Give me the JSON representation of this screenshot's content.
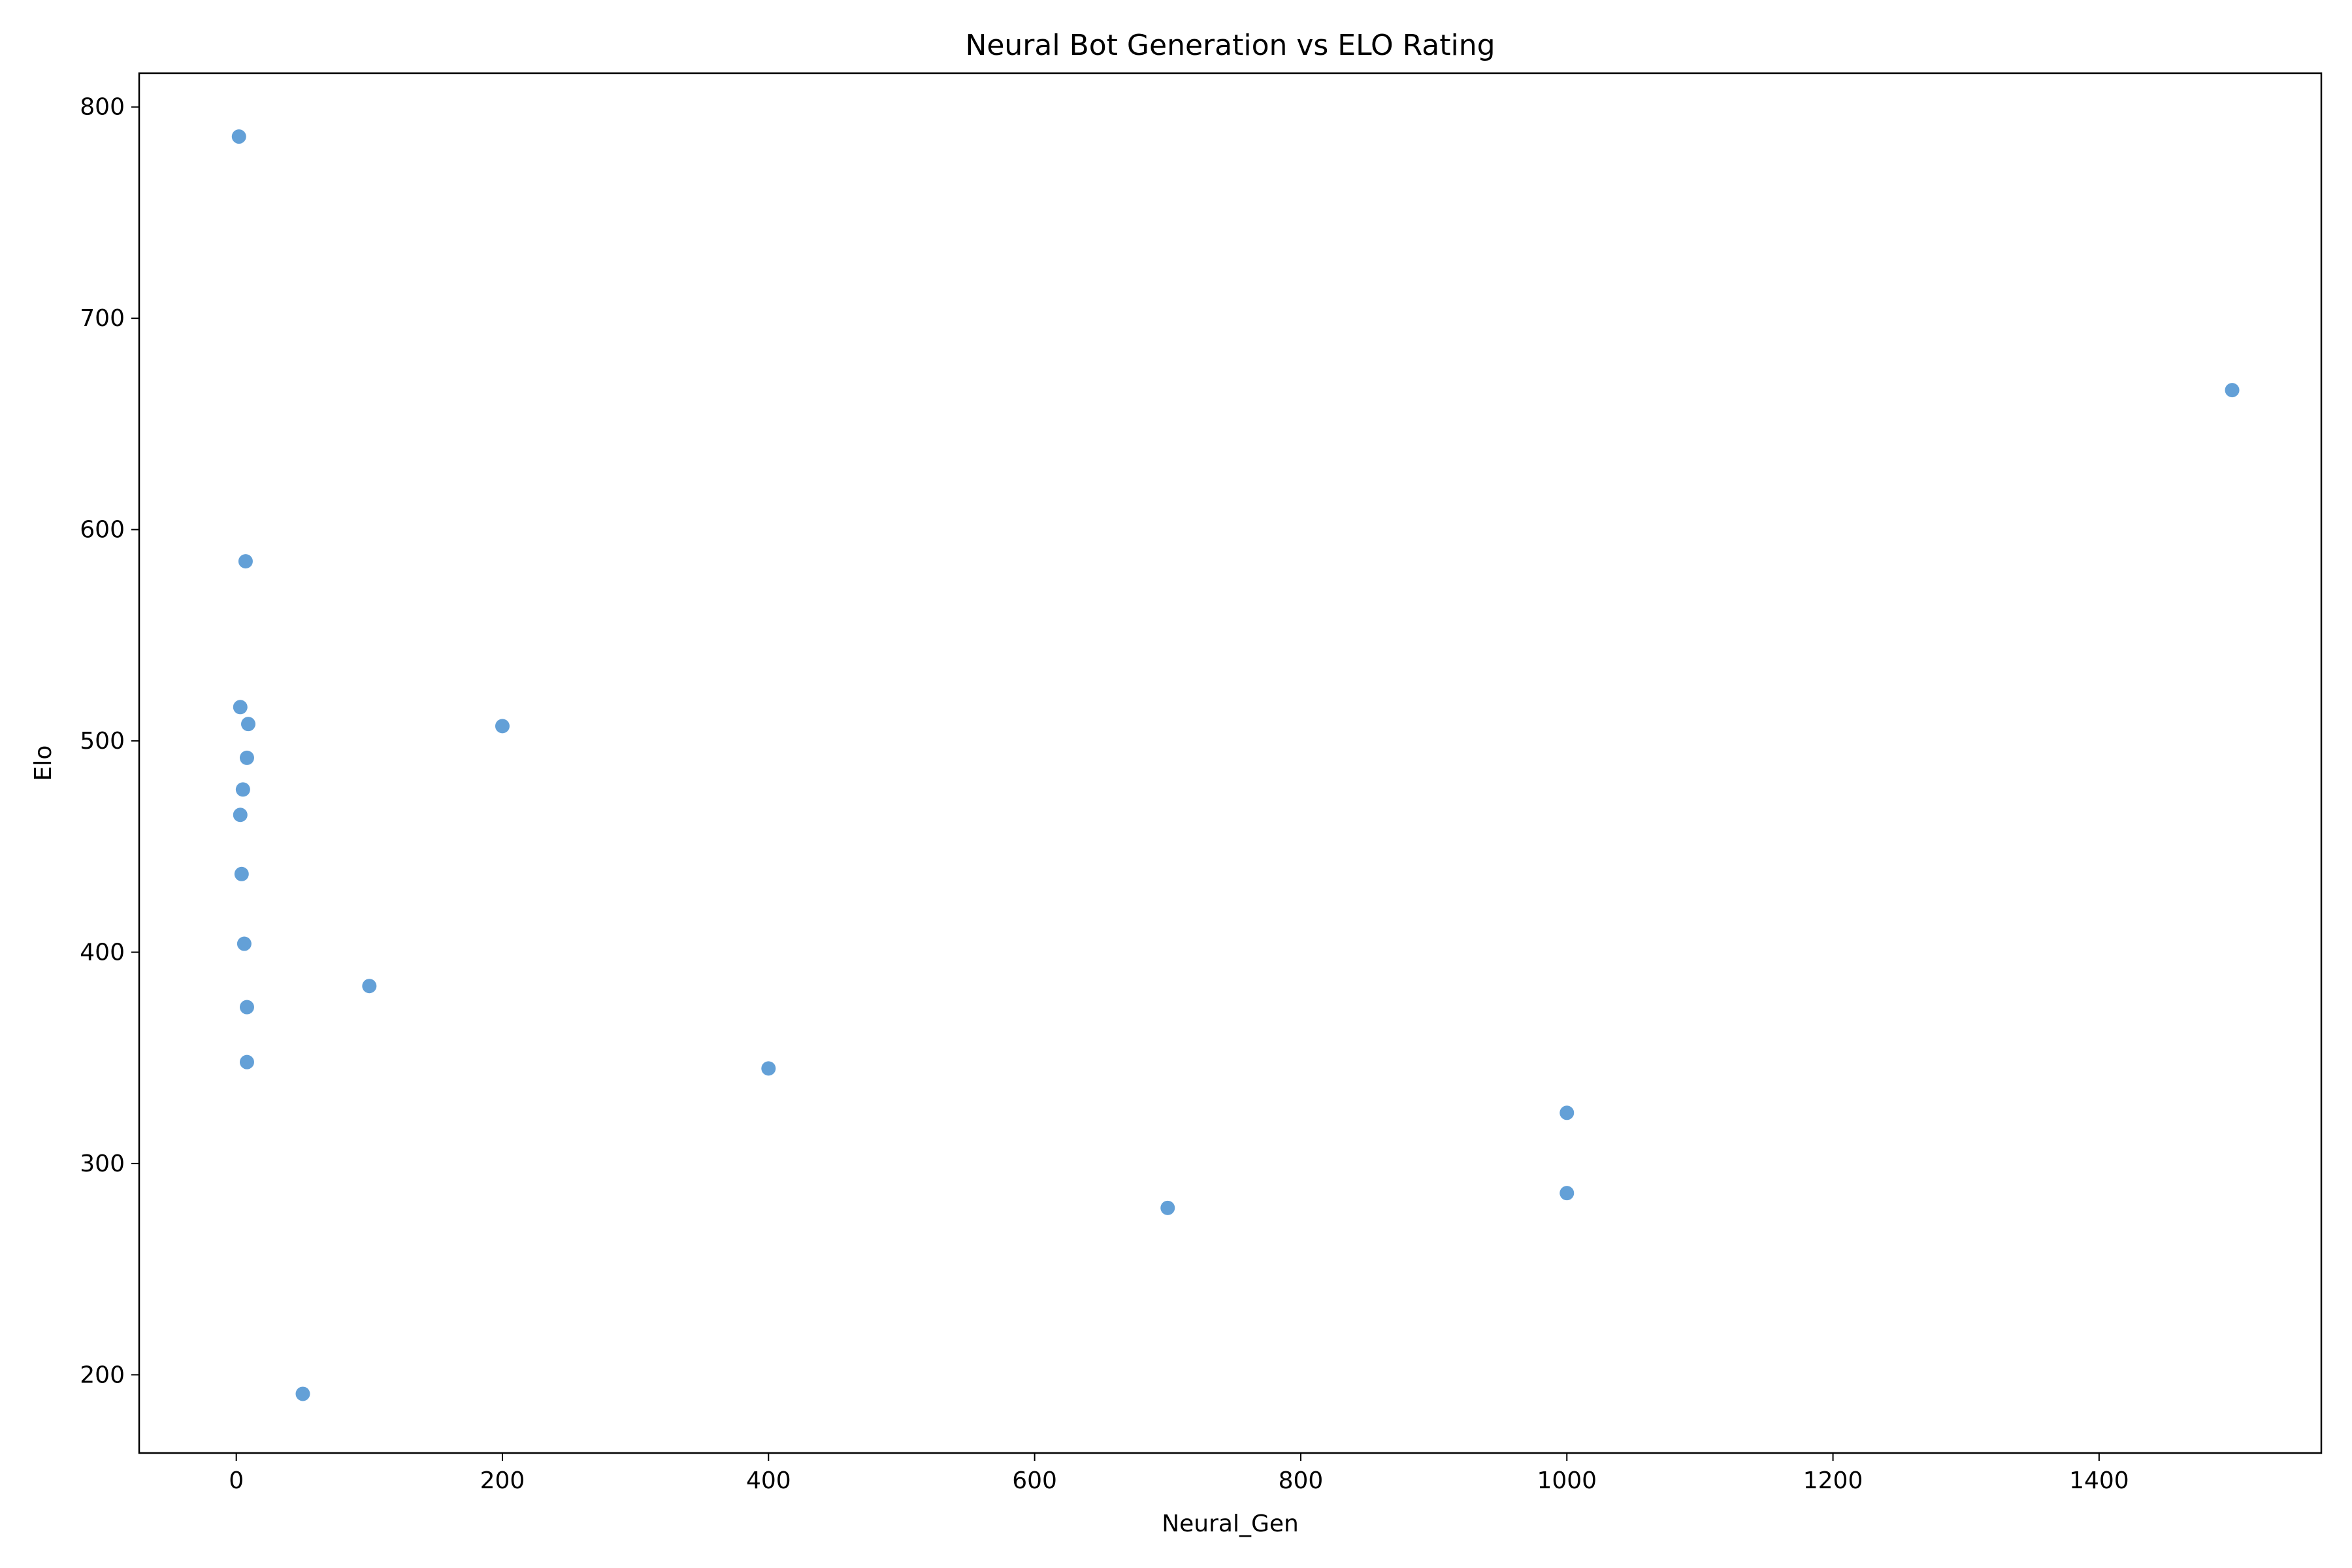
{
  "chart_data": {
    "type": "scatter",
    "title": "Neural Bot Generation vs ELO Rating",
    "xlabel": "Neural_Gen",
    "ylabel": "Elo",
    "xlim": [
      -73,
      1567
    ],
    "ylim": [
      163,
      816
    ],
    "xticks": [
      0,
      200,
      400,
      600,
      800,
      1000,
      1200,
      1400
    ],
    "yticks": [
      200,
      300,
      400,
      500,
      600,
      700,
      800
    ],
    "grid": false,
    "point_color": "#5b9bd5",
    "points": [
      {
        "x": 2,
        "y": 786
      },
      {
        "x": 7,
        "y": 585
      },
      {
        "x": 3,
        "y": 516
      },
      {
        "x": 9,
        "y": 508
      },
      {
        "x": 8,
        "y": 492
      },
      {
        "x": 5,
        "y": 477
      },
      {
        "x": 3,
        "y": 465
      },
      {
        "x": 4,
        "y": 437
      },
      {
        "x": 6,
        "y": 404
      },
      {
        "x": 8,
        "y": 374
      },
      {
        "x": 8,
        "y": 348
      },
      {
        "x": 50,
        "y": 191
      },
      {
        "x": 100,
        "y": 384
      },
      {
        "x": 200,
        "y": 507
      },
      {
        "x": 400,
        "y": 345
      },
      {
        "x": 700,
        "y": 279
      },
      {
        "x": 1000,
        "y": 324
      },
      {
        "x": 1000,
        "y": 286
      },
      {
        "x": 1500,
        "y": 666
      }
    ]
  }
}
